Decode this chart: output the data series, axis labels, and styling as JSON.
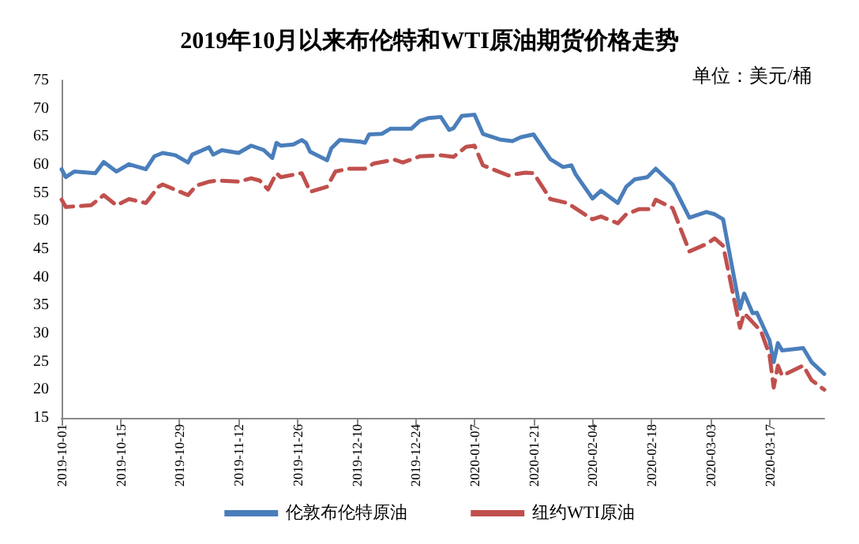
{
  "chart_data": {
    "type": "line",
    "title": "2019年10月以来布伦特和WTI原油期货价格走势",
    "annotations": [
      "单位：美元/桶"
    ],
    "xlim": [
      "2019-10-01",
      "2020-03-30"
    ],
    "xticks": [
      "2019-10-01",
      "2019-10-15",
      "2019-10-29",
      "2019-11-12",
      "2019-11-26",
      "2019-12-10",
      "2019-12-24",
      "2020-01-07",
      "2020-01-21",
      "2020-02-04",
      "2020-02-18",
      "2020-03-03",
      "2020-03-17"
    ],
    "ylim": [
      15,
      75
    ],
    "yticks": [
      15,
      20,
      25,
      30,
      35,
      40,
      45,
      50,
      55,
      60,
      65,
      70,
      75
    ],
    "grid": false,
    "legend": "bottom",
    "series": [
      {
        "name": "伦敦布伦特原油",
        "color": "#4a7ebb",
        "line_style": "solid",
        "x": [
          "2019-10-01",
          "2019-10-02",
          "2019-10-04",
          "2019-10-09",
          "2019-10-11",
          "2019-10-14",
          "2019-10-17",
          "2019-10-21",
          "2019-10-23",
          "2019-10-25",
          "2019-10-28",
          "2019-10-31",
          "2019-11-01",
          "2019-11-05",
          "2019-11-06",
          "2019-11-08",
          "2019-11-12",
          "2019-11-15",
          "2019-11-18",
          "2019-11-20",
          "2019-11-21",
          "2019-11-22",
          "2019-11-25",
          "2019-11-27",
          "2019-11-28",
          "2019-11-29",
          "2019-12-03",
          "2019-12-04",
          "2019-12-06",
          "2019-12-11",
          "2019-12-12",
          "2019-12-13",
          "2019-12-16",
          "2019-12-18",
          "2019-12-23",
          "2019-12-25",
          "2019-12-27",
          "2019-12-30",
          "2020-01-01",
          "2020-01-02",
          "2020-01-04",
          "2020-01-07",
          "2020-01-09",
          "2020-01-13",
          "2020-01-16",
          "2020-01-18",
          "2020-01-21",
          "2020-01-25",
          "2020-01-28",
          "2020-01-30",
          "2020-01-31",
          "2020-02-04",
          "2020-02-06",
          "2020-02-10",
          "2020-02-12",
          "2020-02-14",
          "2020-02-17",
          "2020-02-19",
          "2020-02-23",
          "2020-02-27",
          "2020-03-02",
          "2020-03-04",
          "2020-03-06",
          "2020-03-10",
          "2020-03-11",
          "2020-03-13",
          "2020-03-14",
          "2020-03-17",
          "2020-03-18",
          "2020-03-19",
          "2020-03-20",
          "2020-03-25",
          "2020-03-27",
          "2020-03-30"
        ],
        "values": [
          59.2,
          57.8,
          58.8,
          58.5,
          60.5,
          58.8,
          60.1,
          59.2,
          61.5,
          62.1,
          61.7,
          60.4,
          61.8,
          63.1,
          61.8,
          62.6,
          62.1,
          63.4,
          62.6,
          61.2,
          63.9,
          63.4,
          63.6,
          64.4,
          63.9,
          62.3,
          60.8,
          62.9,
          64.4,
          64.1,
          63.9,
          65.4,
          65.5,
          66.4,
          66.4,
          67.8,
          68.3,
          68.5,
          66.2,
          66.5,
          68.7,
          68.9,
          65.5,
          64.5,
          64.2,
          64.9,
          65.4,
          61.0,
          59.6,
          59.9,
          58.3,
          54.0,
          55.4,
          53.2,
          56.1,
          57.4,
          57.8,
          59.3,
          56.5,
          50.6,
          51.6,
          51.2,
          50.3,
          34.4,
          37.1,
          33.6,
          33.7,
          28.8,
          24.9,
          28.3,
          27.0,
          27.4,
          24.9,
          22.8
        ]
      },
      {
        "name": "纽约WTI原油",
        "color": "#c0504d",
        "line_style": "dashed",
        "x": [
          "2019-10-01",
          "2019-10-02",
          "2019-10-08",
          "2019-10-11",
          "2019-10-14",
          "2019-10-17",
          "2019-10-21",
          "2019-10-24",
          "2019-10-25",
          "2019-10-31",
          "2019-11-02",
          "2019-11-05",
          "2019-11-07",
          "2019-11-12",
          "2019-11-15",
          "2019-11-17",
          "2019-11-19",
          "2019-11-21",
          "2019-11-22",
          "2019-11-27",
          "2019-11-29",
          "2019-12-03",
          "2019-12-05",
          "2019-12-08",
          "2019-12-12",
          "2019-12-14",
          "2019-12-19",
          "2019-12-21",
          "2019-12-25",
          "2019-12-30",
          "2020-01-02",
          "2020-01-05",
          "2020-01-07",
          "2020-01-09",
          "2020-01-15",
          "2020-01-19",
          "2020-01-21",
          "2020-01-25",
          "2020-01-29",
          "2020-02-04",
          "2020-02-06",
          "2020-02-10",
          "2020-02-12",
          "2020-02-15",
          "2020-02-18",
          "2020-02-19",
          "2020-02-23",
          "2020-02-27",
          "2020-03-02",
          "2020-03-04",
          "2020-03-06",
          "2020-03-10",
          "2020-03-11",
          "2020-03-15",
          "2020-03-17",
          "2020-03-18",
          "2020-03-19",
          "2020-03-20",
          "2020-03-25",
          "2020-03-27",
          "2020-03-30"
        ],
        "values": [
          53.8,
          52.5,
          52.8,
          54.6,
          52.8,
          53.9,
          53.2,
          56.1,
          56.5,
          54.6,
          56.3,
          57.0,
          57.2,
          57.0,
          57.6,
          57.2,
          55.6,
          58.5,
          57.8,
          58.5,
          55.2,
          56.1,
          58.8,
          59.3,
          59.3,
          60.2,
          60.9,
          60.4,
          61.5,
          61.7,
          61.4,
          63.2,
          63.4,
          59.9,
          58.1,
          58.6,
          58.5,
          53.9,
          53.2,
          50.3,
          50.8,
          49.6,
          51.2,
          52.1,
          52.1,
          53.8,
          52.3,
          44.6,
          45.9,
          46.9,
          45.6,
          31.0,
          33.6,
          30.4,
          26.2,
          20.4,
          24.3,
          22.5,
          24.3,
          21.7,
          20.0
        ]
      }
    ]
  }
}
